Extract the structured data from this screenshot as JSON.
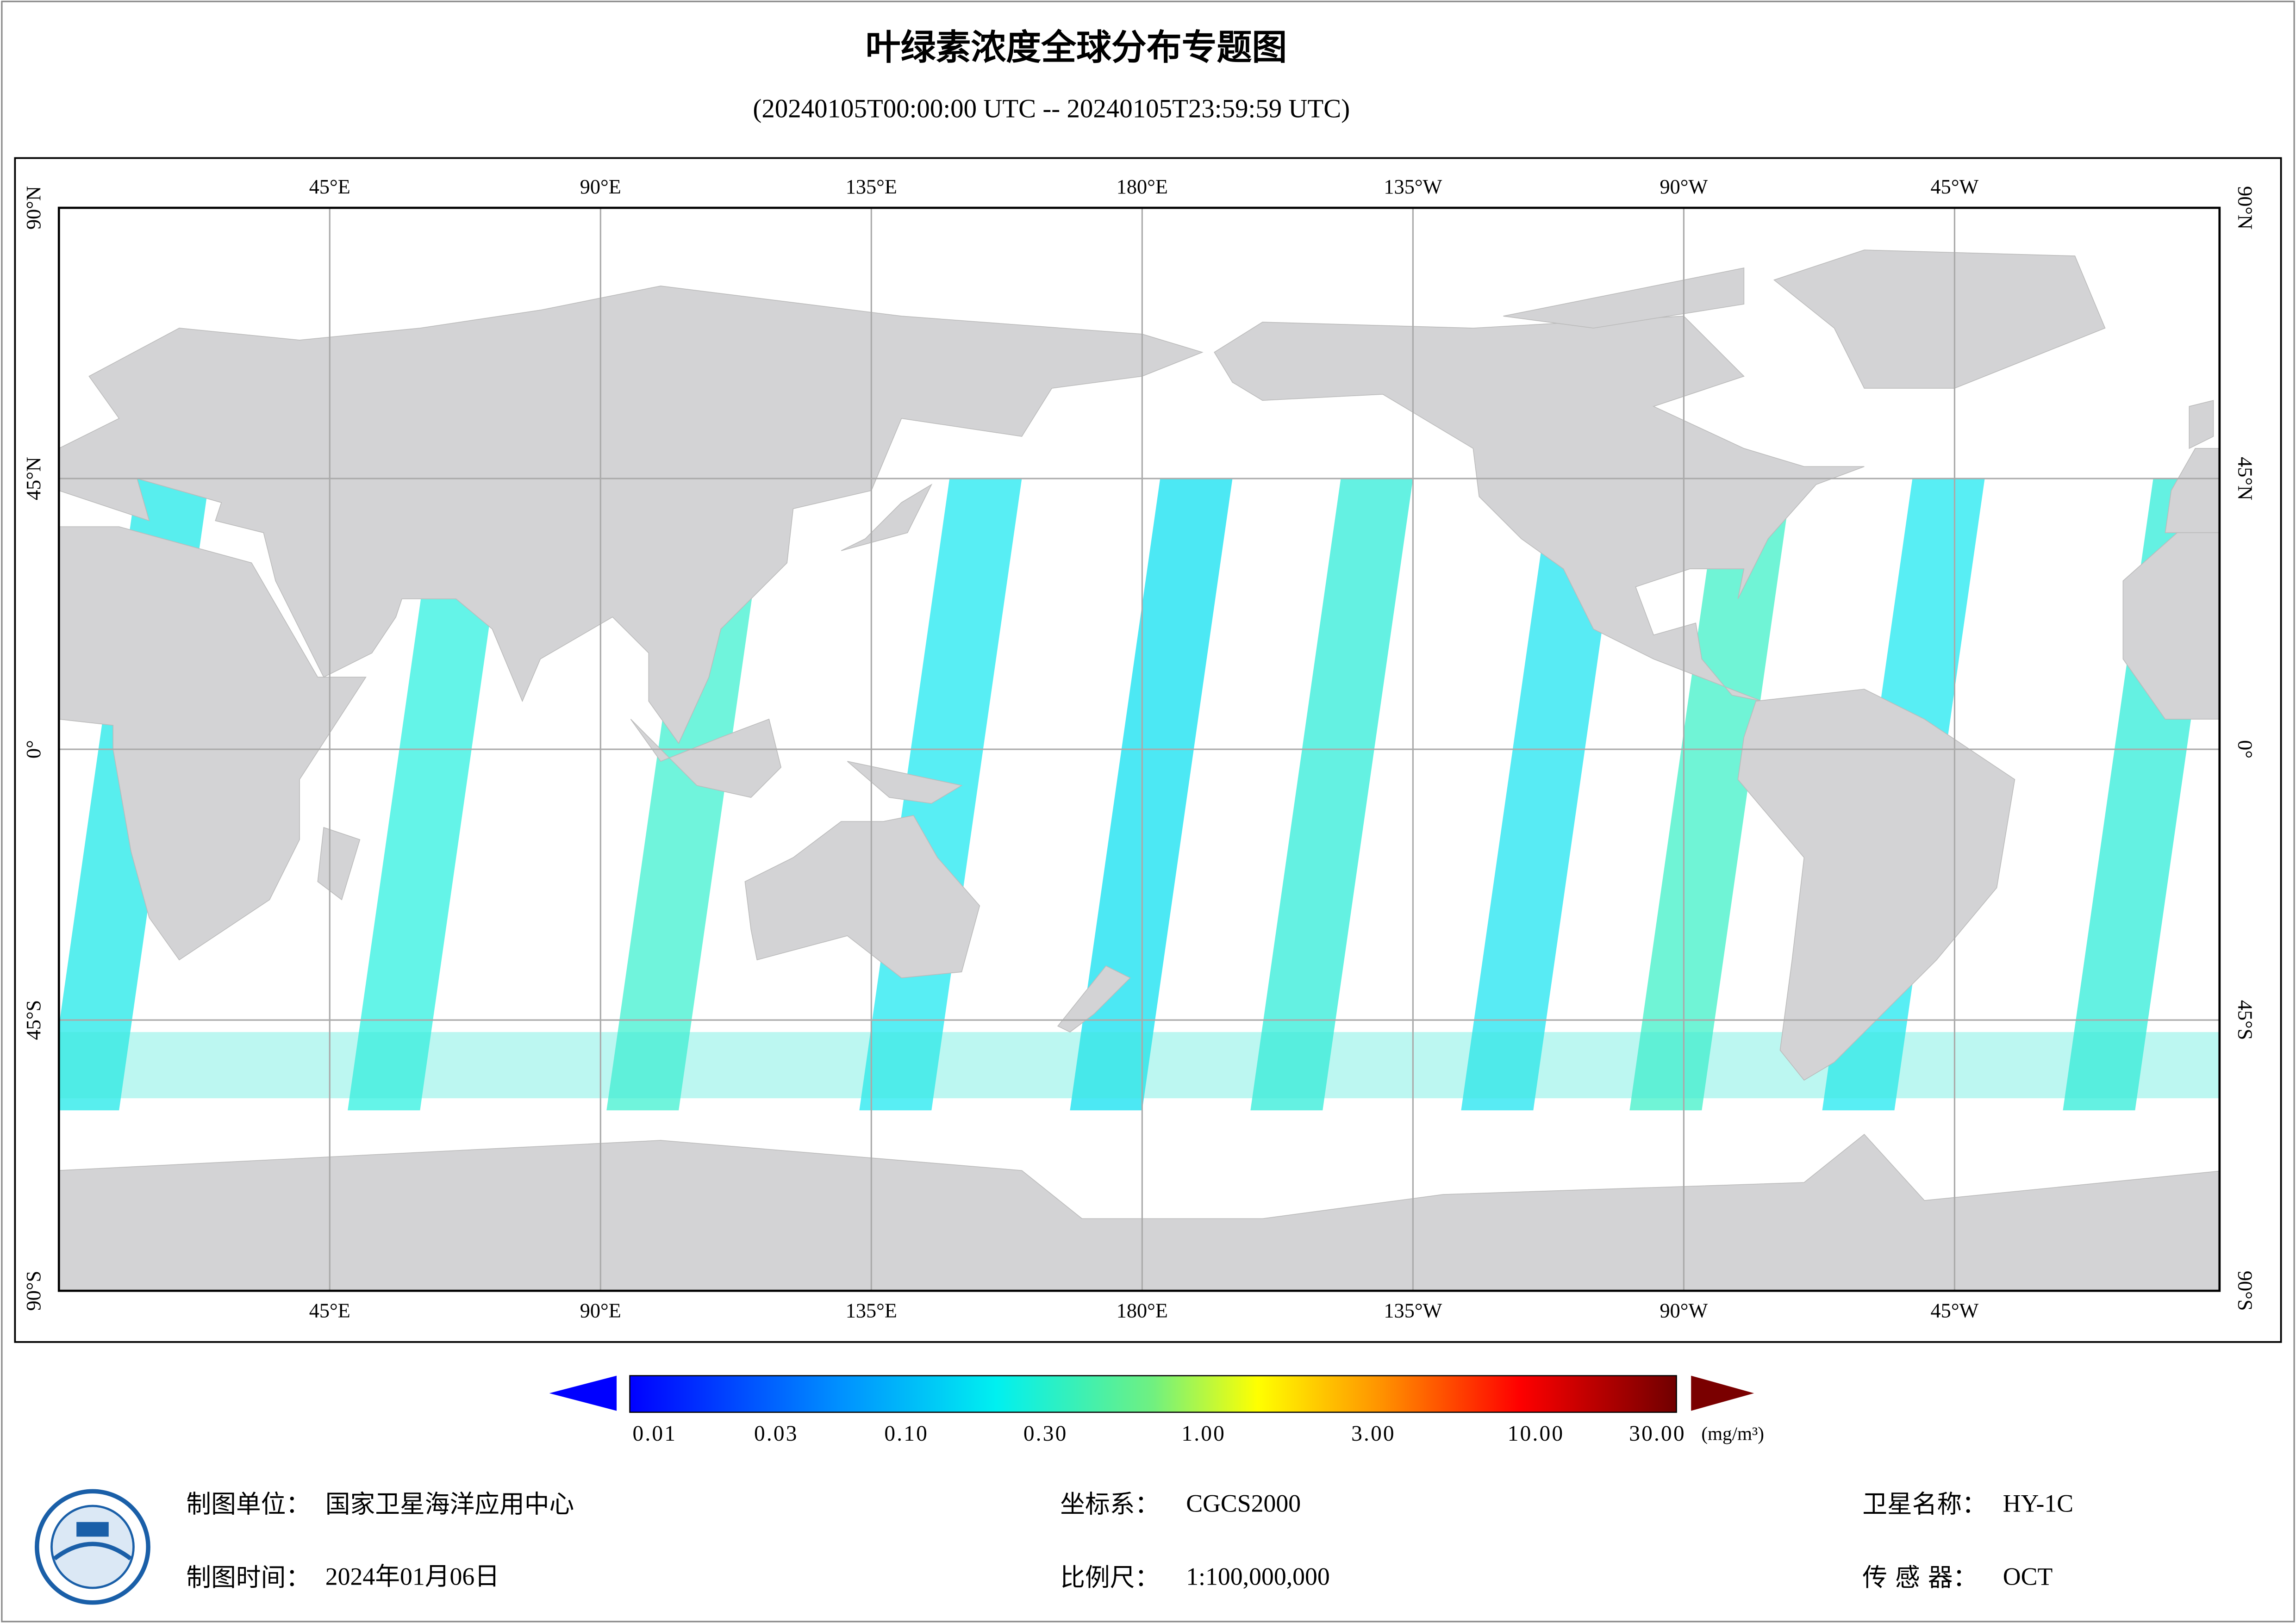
{
  "header": {
    "title": "叶绿素浓度全球分布专题图",
    "subtitle": "(20240105T00:00:00 UTC -- 20240105T23:59:59 UTC)"
  },
  "map": {
    "longitude_labels": [
      "45°E",
      "90°E",
      "135°E",
      "180°E",
      "135°W",
      "90°W",
      "45°W"
    ],
    "latitude_labels": [
      "90°N",
      "45°N",
      "0°",
      "45°S",
      "90°S"
    ]
  },
  "colorbar": {
    "labels": [
      "0.01",
      "0.03",
      "0.10",
      "0.30",
      "1.00",
      "3.00",
      "10.00",
      "30.00"
    ],
    "unit": "(mg/m³)"
  },
  "footer": {
    "producer": {
      "label": "制图单位：",
      "value": "国家卫星海洋应用中心"
    },
    "date": {
      "label": "制图时间：",
      "value": "2024年01月06日"
    },
    "crs": {
      "label": "坐标系：",
      "value": "CGCS2000"
    },
    "scale": {
      "label": "比例尺：",
      "value": "1:100,000,000"
    },
    "satellite": {
      "label": "卫星名称：",
      "value": "HY-1C"
    },
    "sensor": {
      "label": "传 感 器：",
      "value": "OCT"
    }
  }
}
